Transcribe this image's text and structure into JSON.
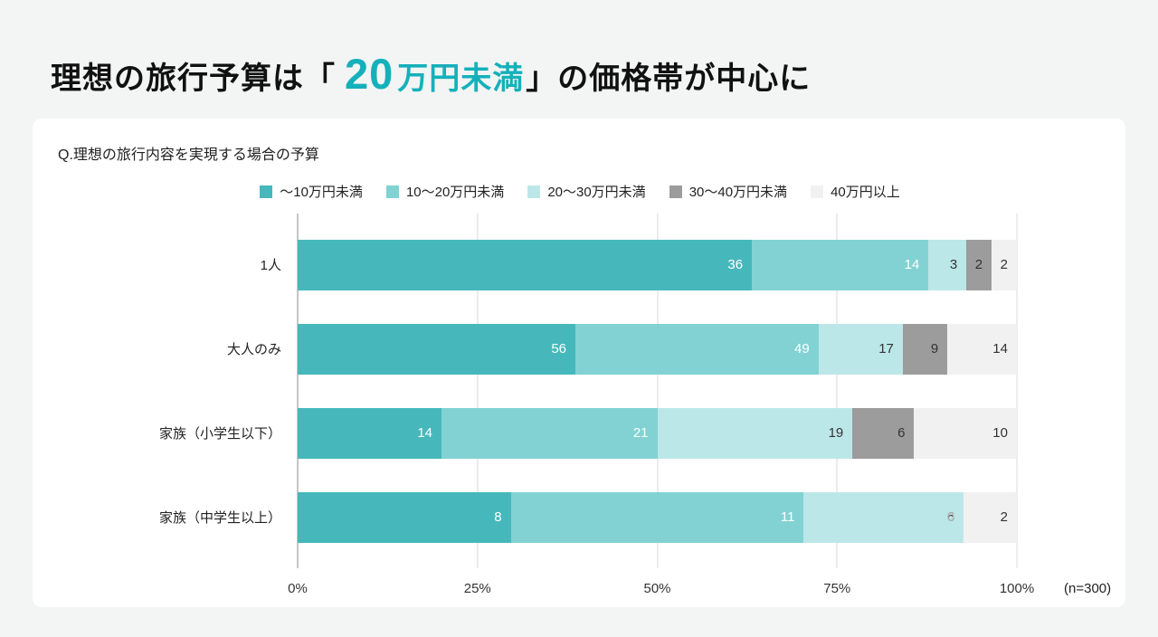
{
  "header": {
    "title_part1": "理想の旅行予算は「",
    "title_highlight_value": "20",
    "title_highlight_unit": "万円未満",
    "title_part2": "」の価格帯が中心に",
    "highlight_color": "#14b1ba"
  },
  "chart_data": {
    "type": "bar",
    "variant": "horizontal-stacked-100percent",
    "title": "Q.理想の旅行内容を実現する場合の予算",
    "note": "(n=300)",
    "categories": [
      "1人",
      "大人のみ",
      "家族（小学生以下）",
      "家族（中学生以上）"
    ],
    "series": [
      {
        "name": "～10万円未満",
        "values": [
          36,
          56,
          14,
          8
        ]
      },
      {
        "name": "10～20万円未満",
        "values": [
          14,
          49,
          21,
          11
        ]
      },
      {
        "name": "20～30万円未満",
        "values": [
          3,
          17,
          19,
          6
        ]
      },
      {
        "name": "30～40万円未満",
        "values": [
          2,
          9,
          6,
          0
        ]
      },
      {
        "name": "40万円以上",
        "values": [
          2,
          14,
          10,
          2
        ]
      }
    ],
    "colors": [
      "#46b8bc",
      "#82d2d3",
      "#bce7e8",
      "#9c9c9c",
      "#f1f1f2"
    ],
    "label_colors": [
      "#ffffff",
      "#ffffff",
      "#333333",
      "#333333",
      "#333333"
    ],
    "zero_label_color": "#b9b9b9",
    "xticks": [
      "0%",
      "25%",
      "50%",
      "75%",
      "100%"
    ],
    "tick_positions": [
      0,
      25,
      50,
      75,
      100
    ],
    "xlim": [
      0,
      100
    ],
    "grid": true,
    "legend_position": "top"
  }
}
